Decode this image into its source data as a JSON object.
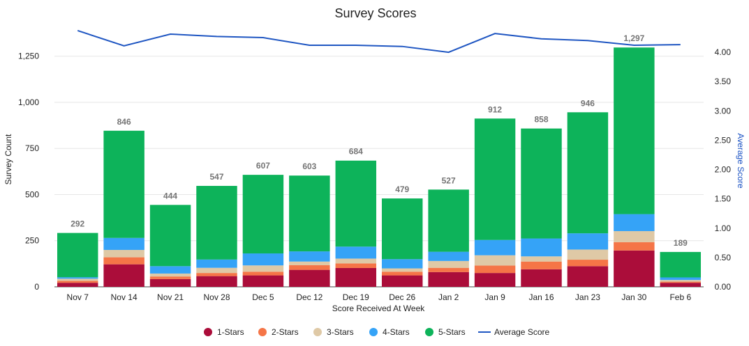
{
  "chart_data": {
    "type": "bar",
    "stacked": true,
    "title": "Survey Scores",
    "xlabel": "Score Received At Week",
    "ylabel": "Survey Count",
    "y2label": "Average Score",
    "ylim": [
      0,
      1430
    ],
    "y2lim": [
      0,
      4.5
    ],
    "yticks": [
      0,
      250,
      500,
      750,
      1000,
      1250
    ],
    "ytick_labels": [
      "0",
      "250",
      "500",
      "750",
      "1,000",
      "1,250"
    ],
    "y2ticks": [
      0,
      0.5,
      1,
      1.5,
      2,
      2.5,
      3,
      3.5,
      4
    ],
    "y2tick_labels": [
      "0.00",
      "0.50",
      "1.00",
      "1.50",
      "2.00",
      "2.50",
      "3.00",
      "3.50",
      "4.00"
    ],
    "grid": true,
    "legend_position": "bottom",
    "categories": [
      "Nov 7",
      "Nov 14",
      "Nov 21",
      "Nov 28",
      "Dec 5",
      "Dec 12",
      "Dec 19",
      "Dec 26",
      "Jan 2",
      "Jan 9",
      "Jan 16",
      "Jan 23",
      "Jan 30",
      "Feb 6"
    ],
    "totals": [
      292,
      846,
      444,
      547,
      607,
      603,
      684,
      479,
      527,
      912,
      858,
      946,
      1297,
      189
    ],
    "total_labels": [
      "292",
      "846",
      "444",
      "547",
      "607",
      "603",
      "684",
      "479",
      "527",
      "912",
      "858",
      "946",
      "1,297",
      "189"
    ],
    "series": [
      {
        "name": "1-Stars",
        "color": "#ab0d3a",
        "values": [
          22,
          122,
          42,
          58,
          62,
          92,
          102,
          62,
          80,
          75,
          95,
          112,
          197,
          22
        ]
      },
      {
        "name": "2-Stars",
        "color": "#f57547",
        "values": [
          10,
          38,
          14,
          17,
          20,
          25,
          25,
          20,
          23,
          40,
          42,
          35,
          45,
          6
        ]
      },
      {
        "name": "3-Stars",
        "color": "#dfc9a6",
        "values": [
          12,
          40,
          16,
          28,
          34,
          20,
          26,
          18,
          37,
          56,
          28,
          55,
          60,
          9
        ]
      },
      {
        "name": "4-Stars",
        "color": "#35a3f7",
        "values": [
          8,
          65,
          40,
          45,
          65,
          55,
          65,
          50,
          50,
          83,
          97,
          88,
          92,
          14
        ]
      },
      {
        "name": "5-Stars",
        "color": "#0db35a",
        "values": [
          240,
          581,
          332,
          399,
          426,
          411,
          466,
          329,
          337,
          658,
          596,
          656,
          903,
          138
        ]
      }
    ],
    "line_series": {
      "name": "Average Score",
      "color": "#1f56c2",
      "values": [
        4.37,
        4.11,
        4.31,
        4.27,
        4.25,
        4.12,
        4.12,
        4.1,
        4.0,
        4.32,
        4.23,
        4.2,
        4.12,
        4.13
      ]
    }
  }
}
